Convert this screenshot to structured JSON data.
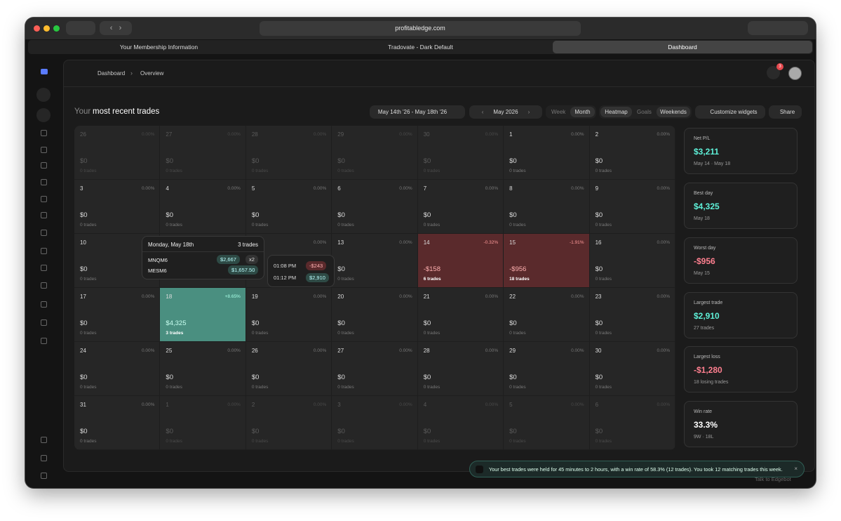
{
  "browser": {
    "url": "profitabledge.com",
    "tabs": [
      "Your Membership Information",
      "Tradovate - Dark Default",
      "Dashboard"
    ]
  },
  "breadcrumb": [
    "Dashboard",
    "Overview"
  ],
  "notification_count": "3",
  "heading": {
    "prefix": "Your",
    "title": "most recent trades"
  },
  "controls": {
    "date_range": "May 14th '26 - May 18th '26",
    "month": "May 2026",
    "week": "Week",
    "month_view": "Month",
    "heatmap": "Heatmap",
    "goals": "Goals",
    "weekends": "Weekends",
    "customize": "Customize widgets",
    "share": "Share"
  },
  "calendar": {
    "cells": [
      {
        "day": "26",
        "pct": "0.00%",
        "amount": "$0",
        "trades": "0 trades",
        "muted": true
      },
      {
        "day": "27",
        "pct": "0.00%",
        "amount": "$0",
        "trades": "0 trades",
        "muted": true
      },
      {
        "day": "28",
        "pct": "0.00%",
        "amount": "$0",
        "trades": "0 trades",
        "muted": true
      },
      {
        "day": "29",
        "pct": "0.00%",
        "amount": "$0",
        "trades": "0 trades",
        "muted": true
      },
      {
        "day": "30",
        "pct": "0.00%",
        "amount": "$0",
        "trades": "0 trades",
        "muted": true
      },
      {
        "day": "1",
        "pct": "0.00%",
        "amount": "$0",
        "trades": "0 trades"
      },
      {
        "day": "2",
        "pct": "0.00%",
        "amount": "$0",
        "trades": "0 trades"
      },
      {
        "day": "3",
        "pct": "0.00%",
        "amount": "$0",
        "trades": "0 trades"
      },
      {
        "day": "4",
        "pct": "0.00%",
        "amount": "$0",
        "trades": "0 trades"
      },
      {
        "day": "5",
        "pct": "0.00%",
        "amount": "$0",
        "trades": "0 trades"
      },
      {
        "day": "6",
        "pct": "0.00%",
        "amount": "$0",
        "trades": "0 trades"
      },
      {
        "day": "7",
        "pct": "0.00%",
        "amount": "$0",
        "trades": "0 trades"
      },
      {
        "day": "8",
        "pct": "0.00%",
        "amount": "$0",
        "trades": "0 trades"
      },
      {
        "day": "9",
        "pct": "0.00%",
        "amount": "$0",
        "trades": "0 trades"
      },
      {
        "day": "10",
        "amount": "$0",
        "trades": "0 trades"
      },
      {},
      {
        "pct": "0.00%"
      },
      {
        "day": "13",
        "pct": "0.00%",
        "amount": "$0",
        "trades": "0 trades"
      },
      {
        "day": "14",
        "pct": "-0.32%",
        "amount": "-$158",
        "trades": "6 trades",
        "tone": "loss"
      },
      {
        "day": "15",
        "pct": "-1.91%",
        "amount": "-$956",
        "trades": "18 trades",
        "tone": "loss"
      },
      {
        "day": "16",
        "pct": "0.00%",
        "amount": "$0",
        "trades": "0 trades"
      },
      {
        "day": "17",
        "pct": "0.00%",
        "amount": "$0",
        "trades": "0 trades"
      },
      {
        "day": "18",
        "pct": "+8.65%",
        "amount": "$4,325",
        "trades": "3 trades",
        "tone": "win"
      },
      {
        "day": "19",
        "pct": "0.00%",
        "amount": "$0",
        "trades": "0 trades"
      },
      {
        "day": "20",
        "pct": "0.00%",
        "amount": "$0",
        "trades": "0 trades"
      },
      {
        "day": "21",
        "pct": "0.00%",
        "amount": "$0",
        "trades": "0 trades"
      },
      {
        "day": "22",
        "pct": "0.00%",
        "amount": "$0",
        "trades": "0 trades"
      },
      {
        "day": "23",
        "pct": "0.00%",
        "amount": "$0",
        "trades": "0 trades"
      },
      {
        "day": "24",
        "pct": "0.00%",
        "amount": "$0",
        "trades": "0 trades"
      },
      {
        "day": "25",
        "pct": "0.00%",
        "amount": "$0",
        "trades": "0 trades"
      },
      {
        "day": "26",
        "pct": "0.00%",
        "amount": "$0",
        "trades": "0 trades"
      },
      {
        "day": "27",
        "pct": "0.00%",
        "amount": "$0",
        "trades": "0 trades"
      },
      {
        "day": "28",
        "pct": "0.00%",
        "amount": "$0",
        "trades": "0 trades"
      },
      {
        "day": "29",
        "pct": "0.00%",
        "amount": "$0",
        "trades": "0 trades"
      },
      {
        "day": "30",
        "pct": "0.00%",
        "amount": "$0",
        "trades": "0 trades"
      },
      {
        "day": "31",
        "pct": "0.00%",
        "amount": "$0",
        "trades": "0 trades"
      },
      {
        "day": "1",
        "pct": "0.00%",
        "amount": "$0",
        "trades": "0 trades",
        "muted": true
      },
      {
        "day": "2",
        "pct": "0.00%",
        "amount": "$0",
        "trades": "0 trades",
        "muted": true
      },
      {
        "day": "3",
        "pct": "0.00%",
        "amount": "$0",
        "trades": "0 trades",
        "muted": true
      },
      {
        "day": "4",
        "pct": "0.00%",
        "amount": "$0",
        "trades": "0 trades",
        "muted": true
      },
      {
        "day": "5",
        "pct": "0.00%",
        "amount": "$0",
        "trades": "0 trades",
        "muted": true
      },
      {
        "day": "6",
        "pct": "0.00%",
        "amount": "$0",
        "trades": "0 trades",
        "muted": true
      }
    ]
  },
  "tooltip": {
    "date": "Monday, May 18th",
    "count": "3 trades",
    "rows": [
      {
        "symbol": "MNQM6",
        "pnl": "$2,667",
        "multiplier": "x2"
      },
      {
        "symbol": "MESM6",
        "pnl": "$1,657.50"
      }
    ]
  },
  "sub_tooltip": {
    "rows": [
      {
        "time": "01:08 PM",
        "pnl": "-$243",
        "tone": "loss"
      },
      {
        "time": "01:12 PM",
        "pnl": "$2,910",
        "tone": "win"
      }
    ]
  },
  "stats": [
    {
      "label": "Net P/L",
      "value": "$3,211",
      "detail": "May 14 · May 18",
      "tone": "win"
    },
    {
      "label": "Best day",
      "value": "$4,325",
      "detail": "May 18",
      "tone": "win"
    },
    {
      "label": "Worst day",
      "value": "-$956",
      "detail": "May 15",
      "tone": "loss"
    },
    {
      "label": "Largest trade",
      "value": "$2,910",
      "detail": "27 trades",
      "tone": "win"
    },
    {
      "label": "Largest loss",
      "value": "-$1,280",
      "detail": "18 losing trades",
      "tone": "loss"
    },
    {
      "label": "Win rate",
      "value": "33.3%",
      "detail": "9W · 18L"
    }
  ],
  "toast": "Your best trades were held for 45 minutes to 2 hours, with a win rate of 58.3% (12 trades). You took 12 matching trades this week.",
  "footer": "Talk to Edgebot"
}
